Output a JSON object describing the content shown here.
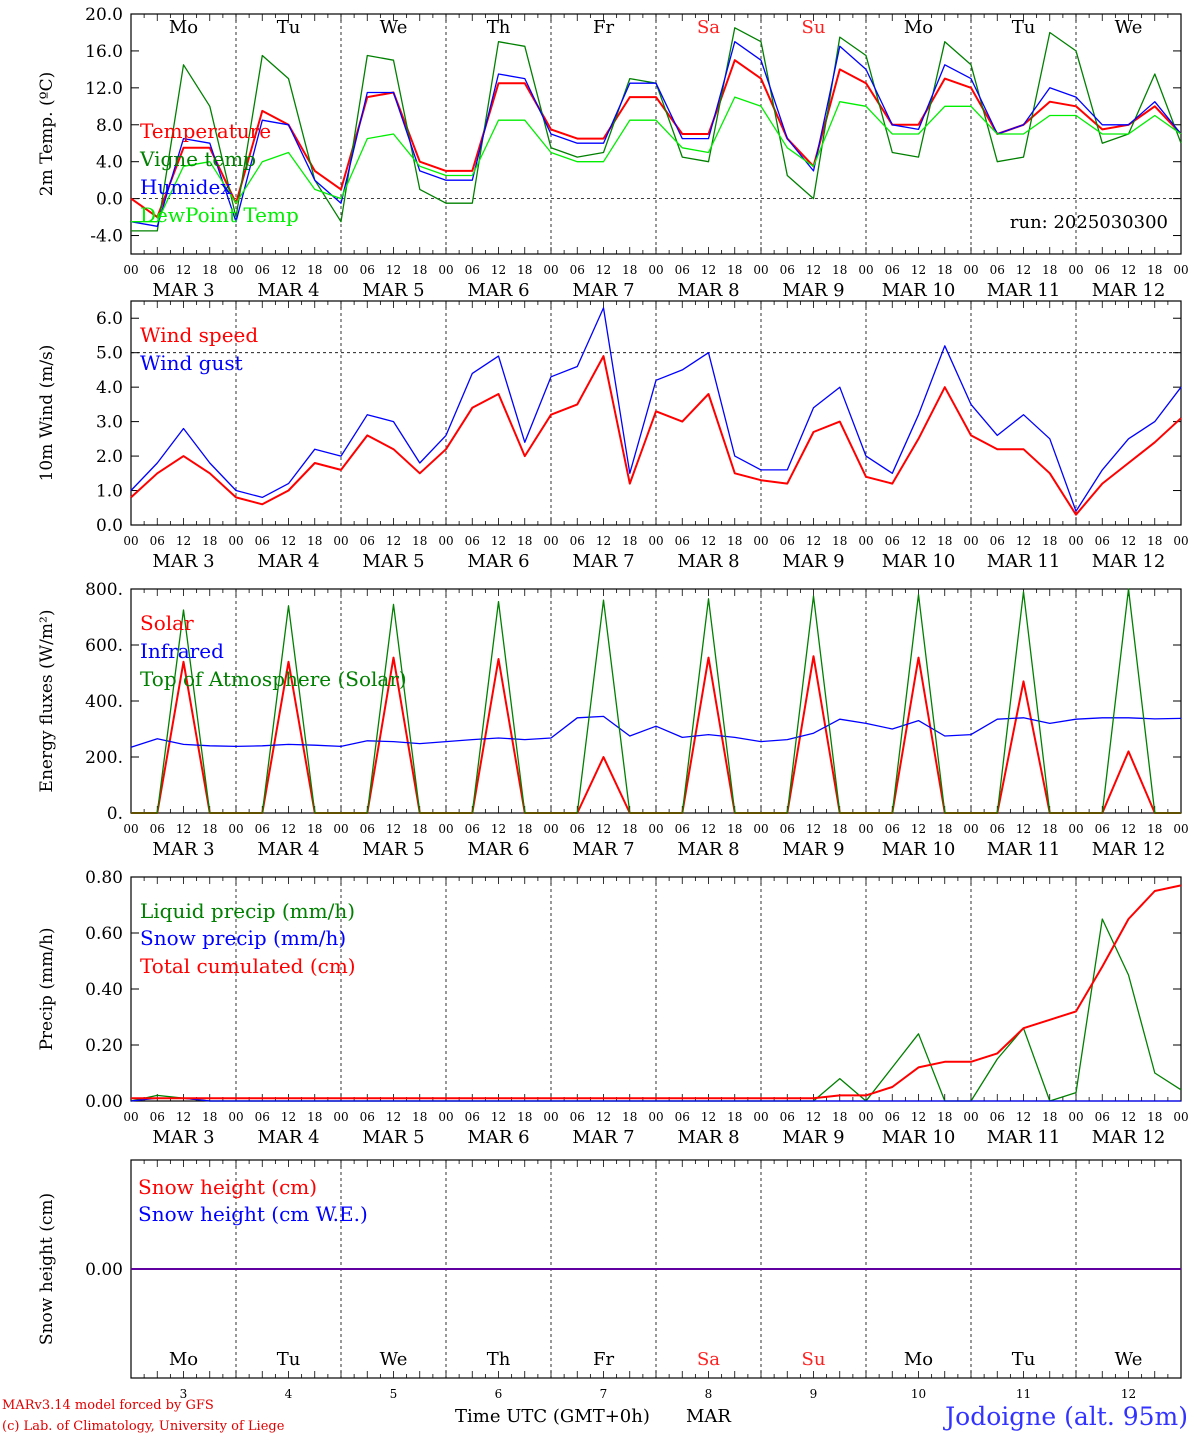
{
  "run_label": "run: 2025030300",
  "days": [
    "Mo",
    "Tu",
    "We",
    "Th",
    "Fr",
    "Sa",
    "Su",
    "Mo",
    "Tu",
    "We"
  ],
  "weekend_color": "#ff2020",
  "dates": [
    "MAR  3",
    "MAR  4",
    "MAR  5",
    "MAR  6",
    "MAR  7",
    "MAR  8",
    "MAR  9",
    "MAR 10",
    "MAR 11",
    "MAR 12"
  ],
  "day_numbers": [
    "3",
    "4",
    "5",
    "6",
    "7",
    "8",
    "9",
    "10",
    "11",
    "12"
  ],
  "hour_ticks": [
    "00",
    "06",
    "12",
    "18"
  ],
  "hour_end": "00",
  "footer": {
    "model": "MARv3.14 model forced by GFS",
    "credit": "(c) Lab. of Climatology, University of Liege",
    "xlabel": "Time UTC (GMT+0h)",
    "month": "MAR",
    "site": "Jodoigne (alt. 95m)"
  },
  "chart_data": [
    {
      "type": "line",
      "ylabel": "2m Temp. (ºC)",
      "ylim": [
        -6,
        20
      ],
      "yticks": [
        "-4.0",
        "0.0",
        "4.0",
        "8.0",
        "12.0",
        "16.0",
        "20.0"
      ],
      "reference_line": 0,
      "grid": "dashed vertical at 00 UTC",
      "legend_placement": "left",
      "x": [
        0,
        6,
        12,
        18,
        24,
        30,
        36,
        42,
        48,
        54,
        60,
        66,
        72,
        78,
        84,
        90,
        96,
        102,
        108,
        114,
        120,
        126,
        132,
        138,
        144,
        150,
        156,
        162,
        168,
        174,
        180,
        186,
        192,
        198,
        204,
        210,
        216,
        222,
        228,
        234,
        240
      ],
      "series": [
        {
          "name": "Temperature",
          "color": "#ff0000",
          "values": [
            0.0,
            -2.0,
            5.5,
            5.5,
            -0.5,
            9.5,
            8.0,
            3.0,
            1.0,
            11.0,
            11.5,
            4.0,
            3.0,
            3.0,
            12.5,
            12.5,
            7.5,
            6.5,
            6.5,
            11.0,
            11.0,
            7.0,
            7.0,
            15.0,
            13.0,
            6.5,
            3.5,
            14.0,
            12.5,
            8.0,
            8.0,
            13.0,
            12.0,
            7.0,
            8.0,
            10.5,
            10.0,
            7.5,
            8.0,
            10.0,
            7.0
          ]
        },
        {
          "name": "Vigne temp",
          "color": "#008000",
          "values": [
            -3.5,
            -3.5,
            14.5,
            10.0,
            -2.0,
            15.5,
            13.0,
            2.0,
            -2.5,
            15.5,
            15.0,
            1.0,
            -0.5,
            -0.5,
            17.0,
            16.5,
            5.5,
            4.5,
            5.0,
            13.0,
            12.5,
            4.5,
            4.0,
            18.5,
            17.0,
            2.5,
            0.0,
            17.5,
            15.5,
            5.0,
            4.5,
            17.0,
            14.5,
            4.0,
            4.5,
            18.0,
            16.0,
            6.0,
            7.0,
            13.5,
            6.0
          ]
        },
        {
          "name": "Humidex",
          "color": "#0000ff",
          "values": [
            -2.5,
            -3.0,
            6.5,
            6.0,
            -2.5,
            8.5,
            8.0,
            2.0,
            -0.5,
            11.5,
            11.5,
            3.0,
            2.0,
            2.0,
            13.5,
            13.0,
            7.0,
            6.0,
            6.0,
            12.5,
            12.5,
            6.5,
            6.5,
            17.0,
            15.0,
            6.5,
            3.0,
            16.5,
            14.0,
            8.0,
            7.5,
            14.5,
            13.0,
            7.0,
            8.0,
            12.0,
            11.0,
            8.0,
            8.0,
            10.5,
            7.0
          ]
        },
        {
          "name": "DewPoint Temp",
          "color": "#00ee00",
          "values": [
            -2.5,
            -2.5,
            3.5,
            4.0,
            -0.5,
            4.0,
            5.0,
            1.0,
            0.0,
            6.5,
            7.0,
            3.5,
            2.5,
            2.5,
            8.5,
            8.5,
            5.0,
            4.0,
            4.0,
            8.5,
            8.5,
            5.5,
            5.0,
            11.0,
            10.0,
            5.5,
            3.5,
            10.5,
            10.0,
            7.0,
            7.0,
            10.0,
            10.0,
            7.0,
            7.0,
            9.0,
            9.0,
            7.0,
            7.0,
            9.0,
            7.0
          ]
        }
      ]
    },
    {
      "type": "line",
      "ylabel": "10m Wind (m/s)",
      "ylim": [
        0,
        6.5
      ],
      "yticks": [
        "0.0",
        "1.0",
        "2.0",
        "3.0",
        "4.0",
        "5.0",
        "6.0"
      ],
      "reference_line": 5,
      "legend_placement": "left",
      "x": [
        0,
        6,
        12,
        18,
        24,
        30,
        36,
        42,
        48,
        54,
        60,
        66,
        72,
        78,
        84,
        90,
        96,
        102,
        108,
        114,
        120,
        126,
        132,
        138,
        144,
        150,
        156,
        162,
        168,
        174,
        180,
        186,
        192,
        198,
        204,
        210,
        216,
        222,
        228,
        234,
        240
      ],
      "series": [
        {
          "name": "Wind speed",
          "color": "#ff0000",
          "values": [
            0.8,
            1.5,
            2.0,
            1.5,
            0.8,
            0.6,
            1.0,
            1.8,
            1.6,
            2.6,
            2.2,
            1.5,
            2.2,
            3.4,
            3.8,
            2.0,
            3.2,
            3.5,
            4.9,
            1.2,
            3.3,
            3.0,
            3.8,
            1.5,
            1.3,
            1.2,
            2.7,
            3.0,
            1.4,
            1.2,
            2.5,
            4.0,
            2.6,
            2.2,
            2.2,
            1.5,
            0.3,
            1.2,
            1.8,
            2.4,
            3.1
          ]
        },
        {
          "name": "Wind gust",
          "color": "#0000ff",
          "values": [
            1.0,
            1.8,
            2.8,
            1.8,
            1.0,
            0.8,
            1.2,
            2.2,
            2.0,
            3.2,
            3.0,
            1.8,
            2.6,
            4.4,
            4.9,
            2.4,
            4.3,
            4.6,
            6.3,
            1.5,
            4.2,
            4.5,
            5.0,
            2.0,
            1.6,
            1.6,
            3.4,
            4.0,
            2.0,
            1.5,
            3.2,
            5.2,
            3.5,
            2.6,
            3.2,
            2.5,
            0.4,
            1.6,
            2.5,
            3.0,
            4.0
          ]
        }
      ]
    },
    {
      "type": "line",
      "ylabel": "Energy fluxes (W/m²)",
      "ylim": [
        0,
        800
      ],
      "yticks": [
        "0.",
        "200.",
        "400.",
        "600.",
        "800."
      ],
      "legend_placement": "left",
      "x": [
        0,
        6,
        12,
        18,
        24,
        30,
        36,
        42,
        48,
        54,
        60,
        66,
        72,
        78,
        84,
        90,
        96,
        102,
        108,
        114,
        120,
        126,
        132,
        138,
        144,
        150,
        156,
        162,
        168,
        174,
        180,
        186,
        192,
        198,
        204,
        210,
        216,
        222,
        228,
        234,
        240
      ],
      "series": [
        {
          "name": "Solar",
          "color": "#ff0000",
          "values": [
            0,
            0,
            540,
            0,
            0,
            0,
            540,
            0,
            0,
            0,
            555,
            0,
            0,
            0,
            550,
            0,
            0,
            0,
            200,
            0,
            0,
            0,
            555,
            0,
            0,
            0,
            560,
            0,
            0,
            0,
            555,
            0,
            0,
            0,
            470,
            0,
            0,
            0,
            220,
            0,
            0
          ]
        },
        {
          "name": "Infrared",
          "color": "#0000ff",
          "values": [
            235,
            265,
            245,
            240,
            238,
            240,
            245,
            242,
            238,
            258,
            255,
            248,
            255,
            262,
            268,
            262,
            268,
            340,
            345,
            275,
            310,
            270,
            280,
            270,
            255,
            262,
            285,
            335,
            320,
            300,
            330,
            275,
            280,
            335,
            340,
            320,
            335,
            340,
            340,
            336,
            338
          ]
        },
        {
          "name": "Top of Atmosphere (Solar)",
          "color": "#008000",
          "values": [
            0,
            0,
            725,
            0,
            0,
            0,
            740,
            0,
            0,
            0,
            745,
            0,
            0,
            0,
            755,
            0,
            0,
            0,
            760,
            0,
            0,
            0,
            765,
            0,
            0,
            0,
            775,
            0,
            0,
            0,
            780,
            0,
            0,
            0,
            790,
            0,
            0,
            0,
            800,
            0,
            0
          ]
        }
      ]
    },
    {
      "type": "line",
      "ylabel": "Precip (mm/h)",
      "ylim": [
        0,
        0.8
      ],
      "yticks": [
        "0.00",
        "0.20",
        "0.40",
        "0.60",
        "0.80"
      ],
      "legend_placement": "left",
      "x": [
        0,
        6,
        12,
        18,
        24,
        30,
        36,
        42,
        48,
        54,
        60,
        66,
        72,
        78,
        84,
        90,
        96,
        102,
        108,
        114,
        120,
        126,
        132,
        138,
        144,
        150,
        156,
        162,
        168,
        174,
        180,
        186,
        192,
        198,
        204,
        210,
        216,
        222,
        228,
        234,
        240
      ],
      "series": [
        {
          "name": "Liquid precip (mm/h)",
          "color": "#008000",
          "values": [
            0,
            0.02,
            0.01,
            0,
            0,
            0,
            0,
            0,
            0,
            0,
            0,
            0,
            0,
            0,
            0,
            0,
            0,
            0,
            0,
            0,
            0,
            0,
            0,
            0,
            0,
            0,
            0,
            0.08,
            0,
            0.12,
            0.24,
            0,
            0,
            0.15,
            0.26,
            0,
            0.03,
            0.65,
            0.45,
            0.1,
            0.04
          ]
        },
        {
          "name": "Snow precip (mm/h)",
          "color": "#0000ff",
          "values": [
            0,
            0.01,
            0.01,
            0,
            0,
            0,
            0,
            0,
            0,
            0,
            0,
            0,
            0,
            0,
            0,
            0,
            0,
            0,
            0,
            0,
            0,
            0,
            0,
            0,
            0,
            0,
            0,
            0,
            0,
            0,
            0,
            0,
            0,
            0,
            0,
            0,
            0,
            0,
            0,
            0,
            0
          ]
        },
        {
          "name": "Total cumulated (cm)",
          "color": "#ff0000",
          "values": [
            0.01,
            0.01,
            0.01,
            0.01,
            0.01,
            0.01,
            0.01,
            0.01,
            0.01,
            0.01,
            0.01,
            0.01,
            0.01,
            0.01,
            0.01,
            0.01,
            0.01,
            0.01,
            0.01,
            0.01,
            0.01,
            0.01,
            0.01,
            0.01,
            0.01,
            0.01,
            0.01,
            0.02,
            0.02,
            0.05,
            0.12,
            0.14,
            0.14,
            0.17,
            0.26,
            0.29,
            0.32,
            0.48,
            0.65,
            0.75,
            0.77
          ]
        }
      ]
    },
    {
      "type": "line",
      "ylabel": "Snow height (cm)",
      "ylim": [
        -1,
        1
      ],
      "yticks": [
        "0.00"
      ],
      "legend_placement": "left",
      "x": [
        0,
        240
      ],
      "series": [
        {
          "name": "Snow height (cm)",
          "color": "#ff0000",
          "values": [
            0,
            0
          ]
        },
        {
          "name": "Snow height (cm W.E.)",
          "color": "#0000ff",
          "values": [
            0,
            0
          ]
        }
      ]
    }
  ]
}
